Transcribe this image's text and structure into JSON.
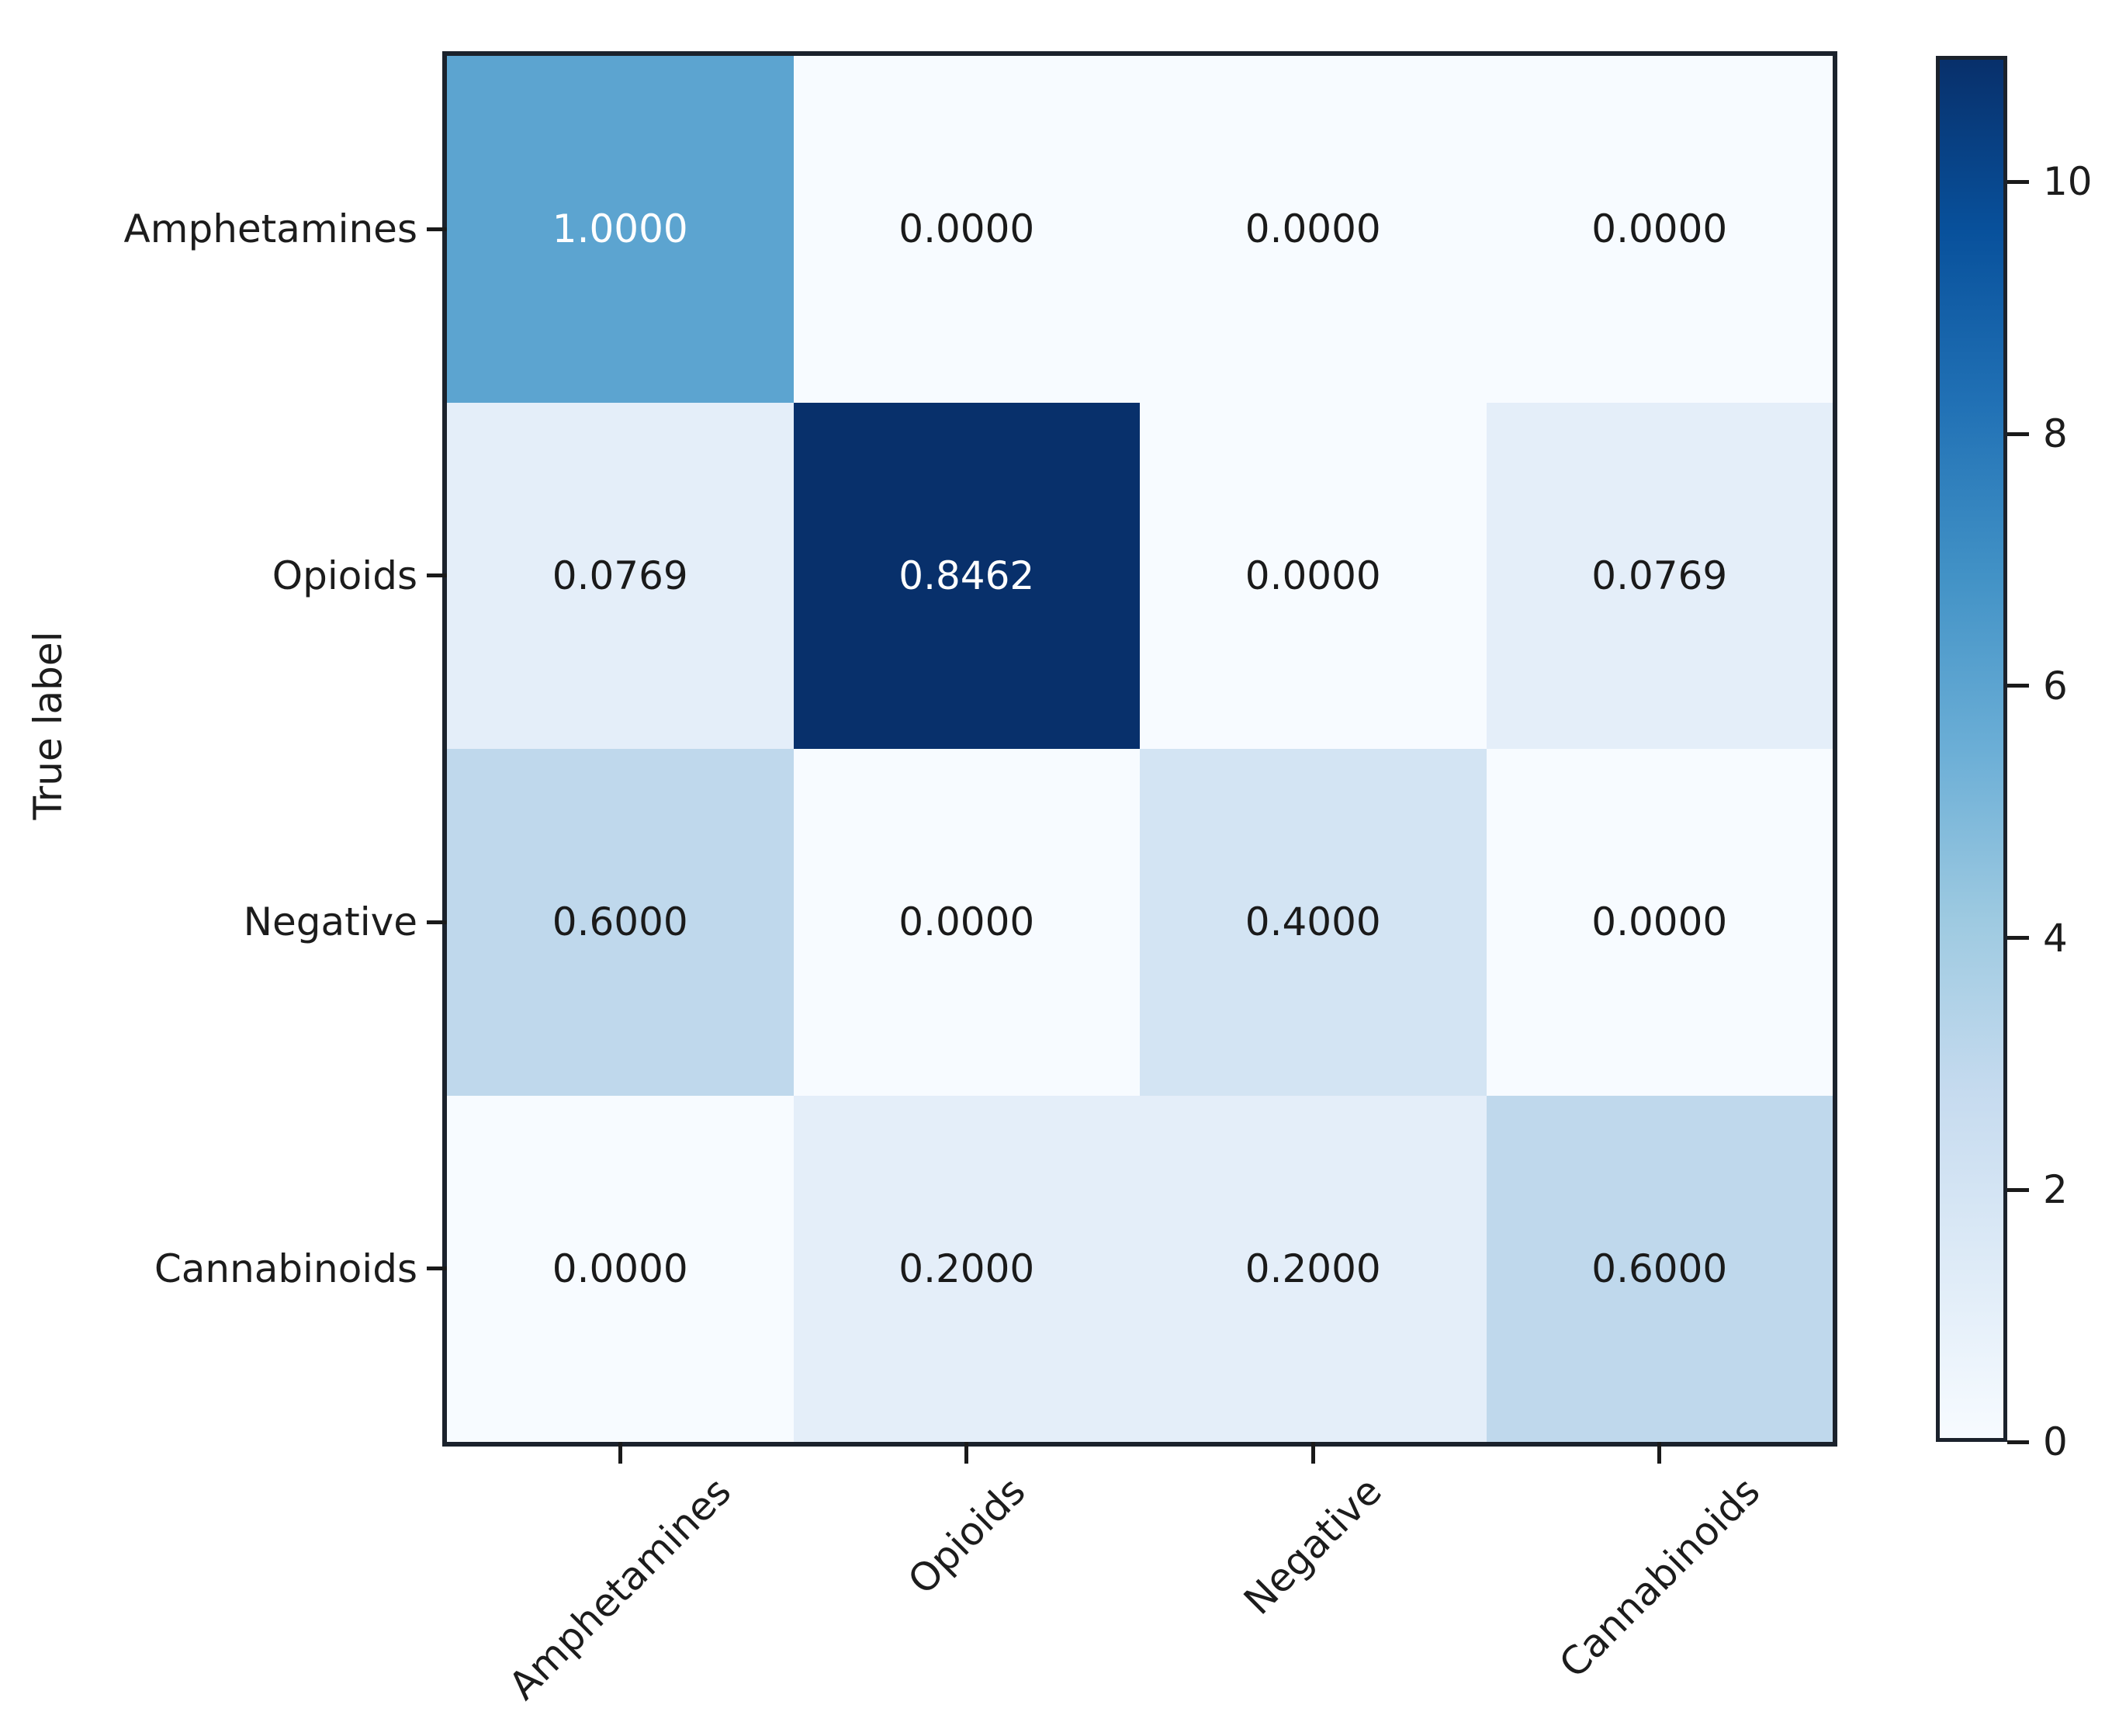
{
  "chart_data": {
    "type": "heatmap",
    "title": "",
    "xlabel": "",
    "ylabel": "True label",
    "row_labels": [
      "Amphetamines",
      "Opioids",
      "Negative",
      "Cannabinoids"
    ],
    "col_labels": [
      "Amphetamines",
      "Opioids",
      "Negative",
      "Cannabinoids"
    ],
    "cell_text": [
      [
        "1.0000",
        "0.0000",
        "0.0000",
        "0.0000"
      ],
      [
        "0.0769",
        "0.8462",
        "0.0000",
        "0.0769"
      ],
      [
        "0.6000",
        "0.0000",
        "0.4000",
        "0.0000"
      ],
      [
        "0.0000",
        "0.2000",
        "0.2000",
        "0.6000"
      ]
    ],
    "values": [
      [
        1.0,
        0.0,
        0.0,
        0.0
      ],
      [
        0.0769,
        0.8462,
        0.0,
        0.0769
      ],
      [
        0.6,
        0.0,
        0.4,
        0.0
      ],
      [
        0.0,
        0.2,
        0.2,
        0.6
      ]
    ],
    "cell_colors": [
      [
        "#5ca4d0",
        "#f7fbff",
        "#f7fbff",
        "#f7fbff"
      ],
      [
        "#e4eef9",
        "#08306b",
        "#f7fbff",
        "#e4eef9"
      ],
      [
        "#bfd8ec",
        "#f7fbff",
        "#d3e4f3",
        "#f7fbff"
      ],
      [
        "#f7fbff",
        "#e4eef9",
        "#e4eef9",
        "#bfd8ec"
      ]
    ],
    "cell_text_colors": [
      [
        "#ffffff",
        "#1a1a1a",
        "#1a1a1a",
        "#1a1a1a"
      ],
      [
        "#1a1a1a",
        "#ffffff",
        "#1a1a1a",
        "#1a1a1a"
      ],
      [
        "#1a1a1a",
        "#1a1a1a",
        "#1a1a1a",
        "#1a1a1a"
      ],
      [
        "#1a1a1a",
        "#1a1a1a",
        "#1a1a1a",
        "#1a1a1a"
      ]
    ],
    "legend_position": "right-colorbar",
    "grid": false,
    "colorbar": {
      "vmin": 0,
      "vmax": 11,
      "tick_labels": [
        "10",
        "8",
        "6",
        "4",
        "2",
        "0"
      ],
      "tick_values": [
        10,
        8,
        6,
        4,
        2,
        0
      ],
      "gradient_stops": [
        "#f7fbff",
        "#deebf7",
        "#c6dbef",
        "#9ecae1",
        "#6baed6",
        "#4292c6",
        "#2171b5",
        "#08519c",
        "#08306b"
      ]
    },
    "accent_dark": "#08306b",
    "background": "#ffffff"
  }
}
